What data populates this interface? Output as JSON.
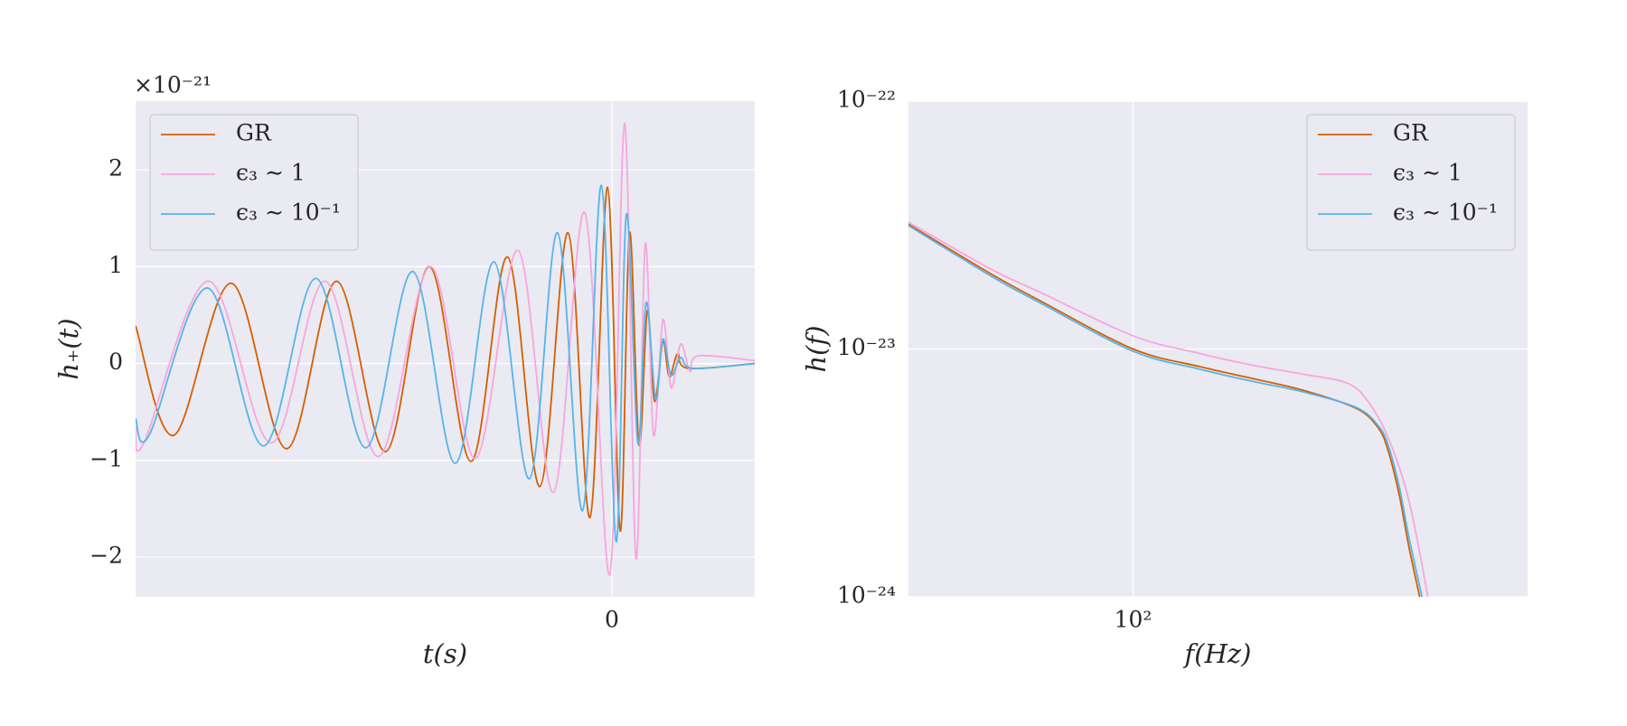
{
  "chart_data": [
    {
      "type": "line",
      "xlabel": "t(s)",
      "ylabel": "h₊(t)",
      "y_offset_label": "×10⁻²¹",
      "xlim": [
        -0.2,
        0.06
      ],
      "ylim": [
        -2.41,
        2.71
      ],
      "xticks": [
        0
      ],
      "yticks": [
        {
          "value": -2,
          "label": "−2"
        },
        {
          "value": -1,
          "label": "−1"
        },
        0,
        1,
        2
      ],
      "grid": true,
      "legend_loc": "upper left",
      "series": [
        {
          "name": "GR",
          "color": "#d55e00",
          "x": [
            -0.2,
            -0.1838,
            -0.1598,
            -0.1366,
            -0.1156,
            -0.095,
            -0.0766,
            -0.0591,
            -0.0438,
            -0.0302,
            -0.0184,
            -0.0092,
            -0.0018,
            0.0035,
            0.0074,
            0.0114,
            0.0149,
            0.0179,
            0.0214,
            0.0241,
            0.0276,
            0.032,
            0.06
          ],
          "values": [
            0.39,
            -0.74,
            0.83,
            -0.88,
            0.85,
            -0.91,
            1.0,
            -1.01,
            1.1,
            -1.27,
            1.35,
            -1.59,
            1.82,
            -1.73,
            1.35,
            -0.84,
            0.55,
            -0.39,
            0.23,
            -0.14,
            0.1,
            -0.05,
            0
          ]
        },
        {
          "name": "ϵ₃ ∼ 1",
          "color": "#f7a6dc",
          "x": [
            -0.2,
            -0.1965,
            -0.1694,
            -0.1431,
            -0.1204,
            -0.098,
            -0.0762,
            -0.0573,
            -0.0394,
            -0.0245,
            -0.0114,
            -0.0009,
            0.0053,
            0.0101,
            0.014,
            0.0175,
            0.0214,
            0.0249,
            0.0289,
            0.0328,
            0.0363,
            0.06
          ],
          "values": [
            -0.66,
            -0.82,
            0.85,
            -0.82,
            0.85,
            -0.96,
            1.0,
            -0.98,
            1.17,
            -1.33,
            1.56,
            -2.18,
            2.48,
            -2.01,
            1.23,
            -0.74,
            0.45,
            -0.25,
            0.2,
            -0.08,
            0.08,
            0.03
          ]
        },
        {
          "name": "ϵ₃ ∼ 10⁻¹",
          "color": "#56b4e9",
          "x": [
            -0.2,
            -0.1943,
            -0.1698,
            -0.1462,
            -0.1243,
            -0.1033,
            -0.0836,
            -0.0657,
            -0.0495,
            -0.0346,
            -0.0228,
            -0.0123,
            -0.0044,
            0.0018,
            0.0061,
            0.0109,
            0.0144,
            0.0184,
            0.0214,
            0.0249,
            0.0289,
            0.0341,
            0.06
          ],
          "values": [
            -0.57,
            -0.74,
            0.78,
            -0.85,
            0.88,
            -0.87,
            0.95,
            -1.03,
            1.05,
            -1.19,
            1.35,
            -1.52,
            1.84,
            -1.84,
            1.54,
            -0.82,
            0.63,
            -0.37,
            0.25,
            -0.12,
            0.06,
            -0.05,
            0
          ]
        }
      ]
    },
    {
      "type": "line",
      "xlabel": "f(Hz)",
      "ylabel": "h(f)",
      "xscale": "log",
      "yscale": "log",
      "xlim": [
        40,
        500
      ],
      "ylim": [
        1e-24,
        1e-22
      ],
      "xticks": [
        {
          "value": 100,
          "label": "10²"
        }
      ],
      "yticks": [
        {
          "value": 1e-24,
          "label": "10⁻²⁴"
        },
        {
          "value": 1e-23,
          "label": "10⁻²³"
        },
        {
          "value": 1e-22,
          "label": "10⁻²²"
        }
      ],
      "grid": true,
      "legend_loc": "upper right",
      "series": [
        {
          "name": "GR",
          "color": "#d55e00",
          "x": [
            40,
            56,
            69,
            100,
            131,
            163,
            201,
            249,
            272,
            283,
            296,
            308,
            322
          ],
          "values": [
            3.19e-23,
            2.01e-23,
            1.55e-23,
            1e-23,
            8.5e-24,
            7.6e-24,
            6.8e-24,
            5.75e-24,
            4.8e-24,
            3.9e-24,
            2.6e-24,
            1.6e-24,
            1e-24
          ]
        },
        {
          "name": "ϵ₃ ∼ 1",
          "color": "#f7a6dc",
          "x": [
            40,
            56,
            69,
            100,
            131,
            163,
            201,
            239,
            260,
            283,
            308,
            333
          ],
          "values": [
            3.25e-23,
            2.1e-23,
            1.68e-23,
            1.13e-23,
            9.6e-24,
            8.6e-24,
            7.9e-24,
            7.3e-24,
            6.2e-24,
            4.4e-24,
            2.46e-24,
            1e-24
          ]
        },
        {
          "name": "ϵ₃ ∼ 10⁻¹",
          "color": "#56b4e9",
          "x": [
            40,
            56,
            69,
            100,
            131,
            163,
            201,
            249,
            272,
            283,
            296,
            308,
            325
          ],
          "values": [
            3.15e-23,
            1.97e-23,
            1.52e-23,
            9.8e-24,
            8.3e-24,
            7.4e-24,
            6.7e-24,
            5.8e-24,
            4.9e-24,
            4.1e-24,
            2.8e-24,
            1.75e-24,
            1e-24
          ]
        }
      ]
    }
  ]
}
